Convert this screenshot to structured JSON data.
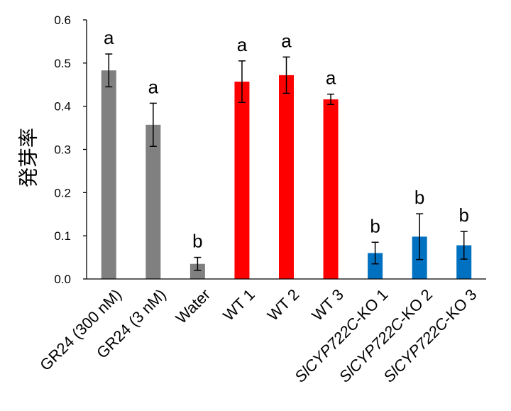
{
  "chart_data": {
    "type": "bar",
    "ylabel": "発芽率",
    "ylim": [
      0,
      0.6
    ],
    "yticks": [
      "0.0",
      "0.1",
      "0.2",
      "0.3",
      "0.4",
      "0.5",
      "0.6"
    ],
    "categories": [
      {
        "text": "GR24 (300 nM)",
        "italic_prefix": ""
      },
      {
        "text": "GR24 (3 nM)",
        "italic_prefix": ""
      },
      {
        "text": "Water",
        "italic_prefix": ""
      },
      {
        "text": "WT 1",
        "italic_prefix": ""
      },
      {
        "text": "WT 2",
        "italic_prefix": ""
      },
      {
        "text": "WT 3",
        "italic_prefix": ""
      },
      {
        "text": "-KO 1",
        "italic_prefix": "SlCYP722C"
      },
      {
        "text": "-KO 2",
        "italic_prefix": "SlCYP722C"
      },
      {
        "text": "-KO 3",
        "italic_prefix": "SlCYP722C"
      }
    ],
    "values": [
      0.483,
      0.357,
      0.035,
      0.457,
      0.472,
      0.416,
      0.06,
      0.098,
      0.078
    ],
    "errors": [
      0.038,
      0.05,
      0.015,
      0.048,
      0.042,
      0.012,
      0.025,
      0.053,
      0.032
    ],
    "significance": [
      "a",
      "a",
      "b",
      "a",
      "a",
      "a",
      "b",
      "b",
      "b"
    ],
    "colors": [
      "#808080",
      "#808080",
      "#808080",
      "#ff0000",
      "#ff0000",
      "#ff0000",
      "#0070c0",
      "#0070c0",
      "#0070c0"
    ]
  }
}
